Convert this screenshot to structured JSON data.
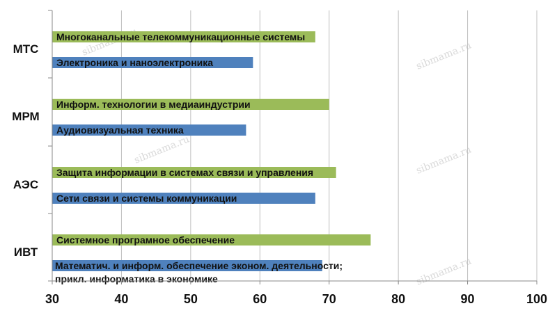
{
  "chart_data": {
    "type": "bar",
    "orientation": "horizontal",
    "xlim": [
      30,
      100
    ],
    "xticks": [
      "30",
      "40",
      "50",
      "60",
      "70",
      "80",
      "90",
      "100"
    ],
    "grid": true,
    "colors": {
      "green": "#9bbb59",
      "blue": "#4f81bd",
      "grid": "#bfbfbf"
    },
    "groups": [
      {
        "label": "МТС",
        "bars": [
          {
            "label": "Многоканальные телекоммуникационные системы",
            "value": 68,
            "color": "green"
          },
          {
            "label": "Электроника и наноэлектроника",
            "value": 59,
            "color": "blue"
          }
        ]
      },
      {
        "label": "МРМ",
        "bars": [
          {
            "label": "Информ. технологии в медиаиндустрии",
            "value": 70,
            "color": "green"
          },
          {
            "label": "Аудиовизуальная техника",
            "value": 58,
            "color": "blue"
          }
        ]
      },
      {
        "label": "АЭС",
        "bars": [
          {
            "label": "Защита информации в системах связи и управления",
            "value": 71,
            "color": "green"
          },
          {
            "label": "Сети связи и системы коммуникации",
            "value": 68,
            "color": "blue"
          }
        ]
      },
      {
        "label": "ИВТ",
        "bars": [
          {
            "label": "Системное програмное обеспечение",
            "value": 76,
            "color": "green"
          },
          {
            "label": "Математич. и информ. обеспечение эконом. деятельности; прикл. информатика в экономике",
            "lines": [
              "Математич. и информ. обеспечение эконом. деятельности;",
              "прикл. информатика в экономике"
            ],
            "value": 69,
            "color": "blue"
          }
        ]
      }
    ]
  },
  "watermark": "sibmama.ru"
}
